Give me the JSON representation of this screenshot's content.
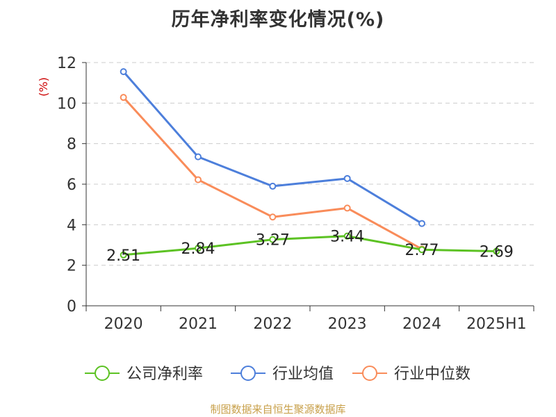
{
  "chart_data": {
    "type": "line",
    "title": "历年净利率变化情况(%)",
    "ylabel": "(%)",
    "xlabel": "",
    "categories": [
      "2020",
      "2021",
      "2022",
      "2023",
      "2024",
      "2025H1"
    ],
    "ylim": [
      0,
      12
    ],
    "yticks": [
      0,
      2,
      4,
      6,
      8,
      10,
      12
    ],
    "grid": true,
    "legend_position": "bottom",
    "series": [
      {
        "name": "公司净利率",
        "color": "#5cc223",
        "values": [
          2.51,
          2.84,
          3.27,
          3.44,
          2.77,
          2.69
        ],
        "show_labels": true
      },
      {
        "name": "行业均值",
        "color": "#4d7fdb",
        "values": [
          11.55,
          7.35,
          5.9,
          6.28,
          4.06,
          null
        ],
        "show_labels": false
      },
      {
        "name": "行业中位数",
        "color": "#f98c5a",
        "values": [
          10.28,
          6.22,
          4.38,
          4.82,
          2.8,
          null
        ],
        "show_labels": false
      }
    ],
    "source": "制图数据来自恒生聚源数据库",
    "colors": {
      "axis": "#333333",
      "grid": "#cccccc",
      "ylabel": "#cc0000",
      "source": "#c8a04a"
    }
  }
}
